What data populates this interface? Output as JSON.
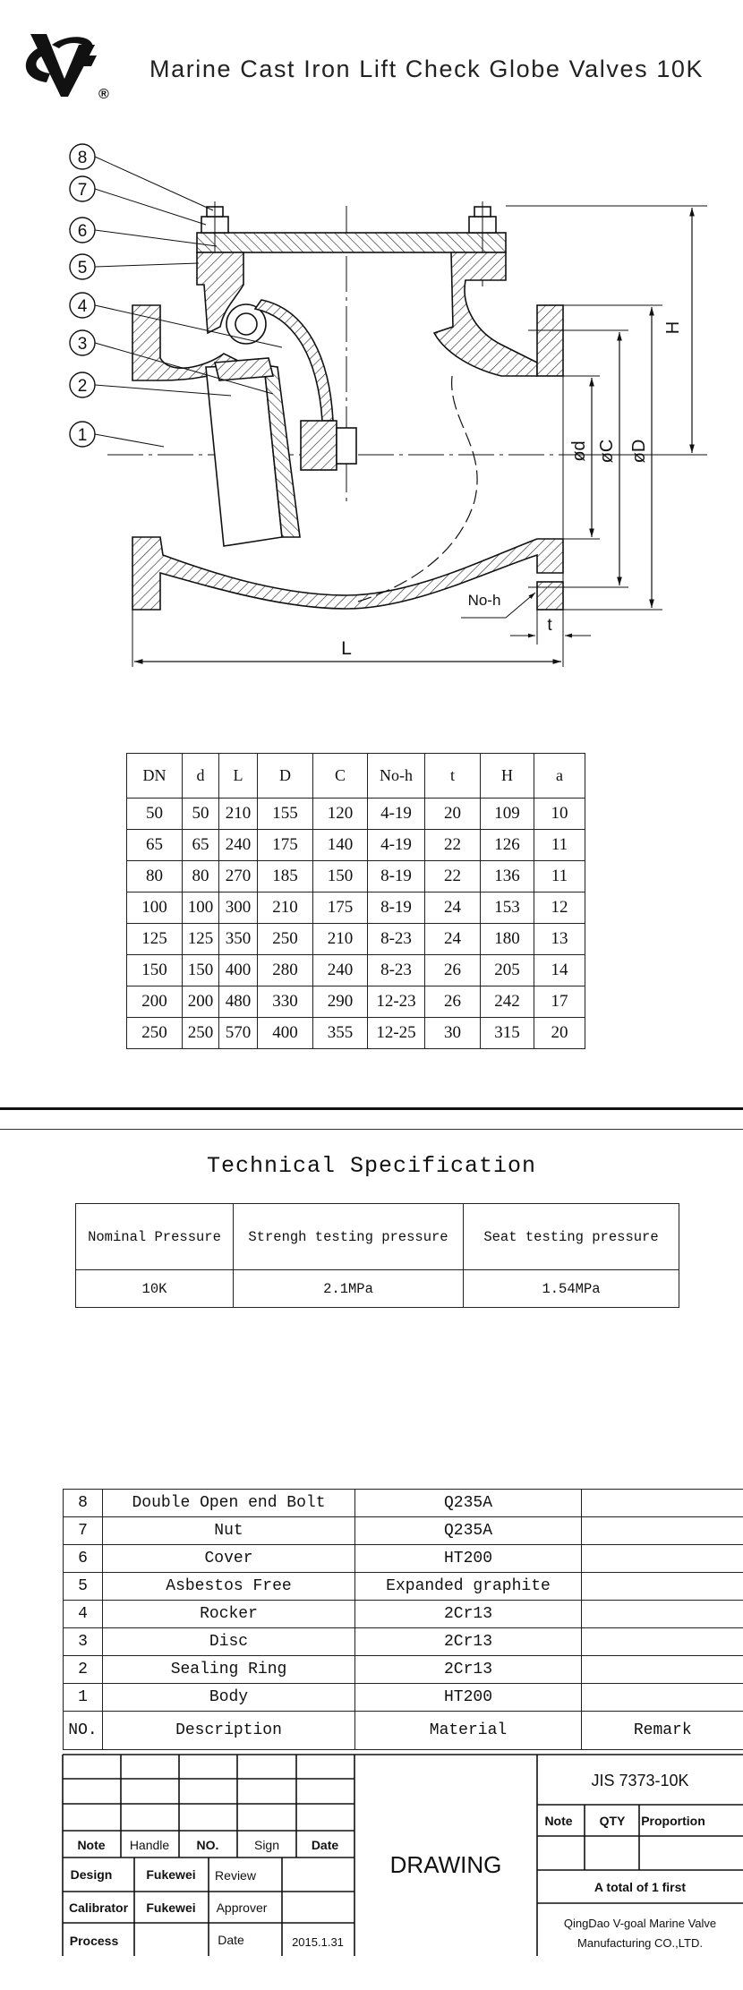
{
  "header": {
    "logo_mark": "®",
    "title": "Marine Cast Iron Lift Check Globe Valves 10K"
  },
  "drawing": {
    "callouts": [
      "1",
      "2",
      "3",
      "4",
      "5",
      "6",
      "7",
      "8"
    ],
    "dimension_labels": {
      "H": "H",
      "D": "øD",
      "C": "øC",
      "d": "ød",
      "No_h": "No-h",
      "t": "t",
      "L": "L"
    }
  },
  "dimension_table": {
    "columns": [
      "DN",
      "d",
      "L",
      "D",
      "C",
      "No-h",
      "t",
      "H",
      "a"
    ],
    "rows": [
      [
        "50",
        "50",
        "210",
        "155",
        "120",
        "4-19",
        "20",
        "109",
        "10"
      ],
      [
        "65",
        "65",
        "240",
        "175",
        "140",
        "4-19",
        "22",
        "126",
        "11"
      ],
      [
        "80",
        "80",
        "270",
        "185",
        "150",
        "8-19",
        "22",
        "136",
        "11"
      ],
      [
        "100",
        "100",
        "300",
        "210",
        "175",
        "8-19",
        "24",
        "153",
        "12"
      ],
      [
        "125",
        "125",
        "350",
        "250",
        "210",
        "8-23",
        "24",
        "180",
        "13"
      ],
      [
        "150",
        "150",
        "400",
        "280",
        "240",
        "8-23",
        "26",
        "205",
        "14"
      ],
      [
        "200",
        "200",
        "480",
        "330",
        "290",
        "12-23",
        "26",
        "242",
        "17"
      ],
      [
        "250",
        "250",
        "570",
        "400",
        "355",
        "12-25",
        "30",
        "315",
        "20"
      ]
    ]
  },
  "technical_specification": {
    "title": "Technical Specification",
    "columns": [
      "Nominal Pressure",
      "Strengh testing pressure",
      "Seat testing pressure"
    ],
    "values": [
      "10K",
      "2.1MPa",
      "1.54MPa"
    ]
  },
  "parts_list": {
    "rows": [
      [
        "8",
        "Double Open end Bolt",
        "Q235A",
        ""
      ],
      [
        "7",
        "Nut",
        "Q235A",
        ""
      ],
      [
        "6",
        "Cover",
        "HT200",
        ""
      ],
      [
        "5",
        "Asbestos Free",
        "Expanded graphite",
        ""
      ],
      [
        "4",
        "Rocker",
        "2Cr13",
        ""
      ],
      [
        "3",
        "Disc",
        "2Cr13",
        ""
      ],
      [
        "2",
        "Sealing Ring",
        "2Cr13",
        ""
      ],
      [
        "1",
        "Body",
        "HT200",
        ""
      ]
    ],
    "columns": [
      "NO.",
      "Description",
      "Material",
      "Remark"
    ]
  },
  "title_block": {
    "revision_headers": [
      "Note",
      "Handle",
      "NO.",
      "Sign",
      "Date"
    ],
    "design_label": "Design",
    "design_value": "Fukewei",
    "review_label": "Review",
    "review_value": "",
    "calibrator_label": "Calibrator",
    "calibrator_value": "Fukewei",
    "approver_label": "Approver",
    "approver_value": "",
    "process_label": "Process",
    "process_value": "",
    "date_label": "Date",
    "date_value": "2015.1.31",
    "drawing_label": "DRAWING",
    "standard": "JIS 7373-10K",
    "note_header": "Note",
    "qty_header": "QTY",
    "proportion_header": "Proportion",
    "sheets": "A total of 1 first",
    "company_line1": "QingDao V-goal Marine Valve",
    "company_line2": "Manufacturing CO.,LTD."
  }
}
